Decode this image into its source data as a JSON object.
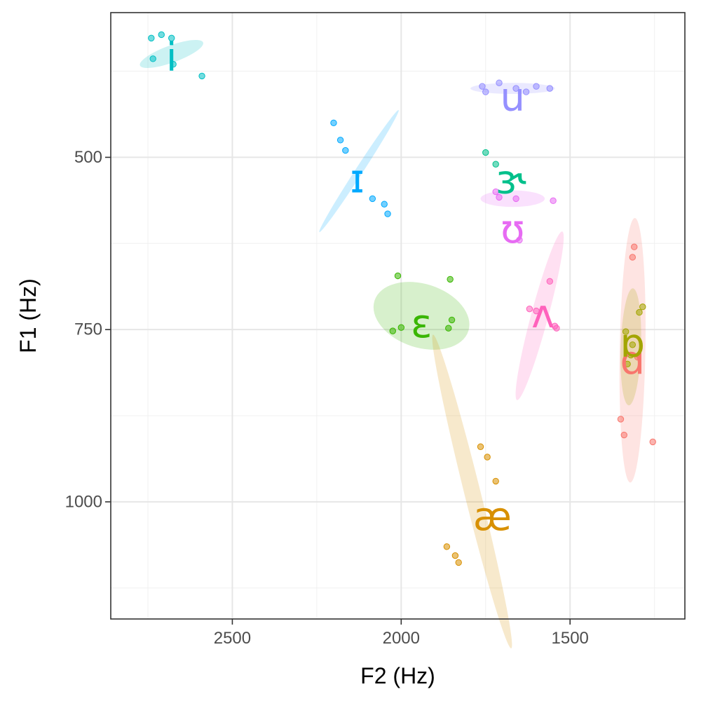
{
  "chart_data": {
    "type": "scatter",
    "title": "",
    "xlabel": "F2 (Hz)",
    "ylabel": "F1 (Hz)",
    "xlim": [
      2860,
      1160
    ],
    "ylim": [
      1170,
      290
    ],
    "x_reversed": true,
    "y_reversed": true,
    "xticks": [
      2500,
      2000,
      1500
    ],
    "xtick_labels": [
      "2500",
      "2000",
      "1500"
    ],
    "yticks": [
      500,
      750,
      1000
    ],
    "ytick_labels": [
      "500",
      "750",
      "1000"
    ],
    "grid": true,
    "legend": "none",
    "series": [
      {
        "name": "i",
        "color": "#00BFC4",
        "label_pos": [
          2680,
          355
        ],
        "ellipse": {
          "cx": 2680,
          "cy": 350,
          "rx": 85,
          "ry": 13,
          "angle": 20
        },
        "points": [
          [
            2740,
            327
          ],
          [
            2710,
            322
          ],
          [
            2680,
            327
          ],
          [
            2735,
            357
          ],
          [
            2675,
            365
          ],
          [
            2590,
            382
          ]
        ]
      },
      {
        "name": "ɪ",
        "color": "#00A9FF",
        "label_pos": [
          2130,
          532
        ],
        "ellipse": {
          "cx": 2125,
          "cy": 520,
          "rx": 120,
          "ry": 8,
          "angle": 57
        },
        "points": [
          [
            2200,
            450
          ],
          [
            2180,
            475
          ],
          [
            2165,
            490
          ],
          [
            2085,
            560
          ],
          [
            2050,
            568
          ],
          [
            2040,
            582
          ]
        ]
      },
      {
        "name": "u",
        "color": "#9590FF",
        "label_pos": [
          1670,
          413
        ],
        "ellipse": {
          "cx": 1670,
          "cy": 400,
          "rx": 125,
          "ry": 8,
          "angle": 0
        },
        "points": [
          [
            1760,
            397
          ],
          [
            1710,
            392
          ],
          [
            1750,
            405
          ],
          [
            1630,
            405
          ],
          [
            1660,
            400
          ],
          [
            1600,
            397
          ],
          [
            1560,
            400
          ]
        ]
      },
      {
        "name": "ɝ",
        "color": "#00C08B",
        "label_pos": [
          1675,
          533
        ],
        "ellipse": null,
        "points": [
          [
            1750,
            493
          ],
          [
            1720,
            510
          ]
        ]
      },
      {
        "name": "ʊ",
        "color": "#E76BF3",
        "label_pos": [
          1670,
          605
        ],
        "ellipse": {
          "cx": 1670,
          "cy": 560,
          "rx": 95,
          "ry": 12,
          "angle": 0
        },
        "points": [
          [
            1720,
            550
          ],
          [
            1710,
            558
          ],
          [
            1660,
            560
          ],
          [
            1550,
            563
          ],
          [
            1650,
            620
          ]
        ]
      },
      {
        "name": "ʌ",
        "color": "#FF62BC",
        "label_pos": [
          1580,
          728
        ],
        "ellipse": {
          "cx": 1590,
          "cy": 730,
          "rx": 130,
          "ry": 23,
          "angle": 75
        },
        "points": [
          [
            1560,
            680
          ],
          [
            1620,
            720
          ],
          [
            1600,
            723
          ],
          [
            1545,
            745
          ],
          [
            1540,
            748
          ]
        ]
      },
      {
        "name": "ɛ",
        "color": "#39B600",
        "label_pos": [
          1940,
          742
        ],
        "ellipse": {
          "cx": 1940,
          "cy": 730,
          "rx": 128,
          "ry": 48,
          "angle": -18
        },
        "points": [
          [
            2010,
            672
          ],
          [
            1855,
            677
          ],
          [
            2000,
            747
          ],
          [
            2025,
            752
          ],
          [
            1850,
            736
          ],
          [
            1860,
            748
          ]
        ]
      },
      {
        "name": "æ",
        "color": "#D89000",
        "label_pos": [
          1730,
          1022
        ],
        "ellipse": {
          "cx": 1790,
          "cy": 985,
          "rx": 240,
          "ry": 22,
          "angle": -76
        },
        "points": [
          [
            1765,
            920
          ],
          [
            1745,
            935
          ],
          [
            1720,
            970
          ],
          [
            1865,
            1065
          ],
          [
            1840,
            1078
          ],
          [
            1830,
            1088
          ]
        ]
      },
      {
        "name": "ɑ",
        "color": "#F8766D",
        "label_pos": [
          1315,
          795
        ],
        "ellipse": {
          "cx": 1315,
          "cy": 780,
          "rx": 192,
          "ry": 38,
          "angle": 89
        },
        "points": [
          [
            1310,
            630
          ],
          [
            1315,
            645
          ],
          [
            1350,
            880
          ],
          [
            1340,
            903
          ],
          [
            1255,
            913
          ],
          [
            1300,
            790
          ]
        ]
      },
      {
        "name": "ɒ",
        "color": "#A3A500",
        "label_pos": [
          1315,
          770
        ],
        "ellipse": {
          "cx": 1320,
          "cy": 775,
          "rx": 85,
          "ry": 30,
          "angle": 88
        },
        "points": [
          [
            1285,
            717
          ],
          [
            1295,
            725
          ],
          [
            1335,
            753
          ],
          [
            1320,
            787
          ],
          [
            1330,
            800
          ],
          [
            1315,
            772
          ]
        ]
      }
    ]
  }
}
